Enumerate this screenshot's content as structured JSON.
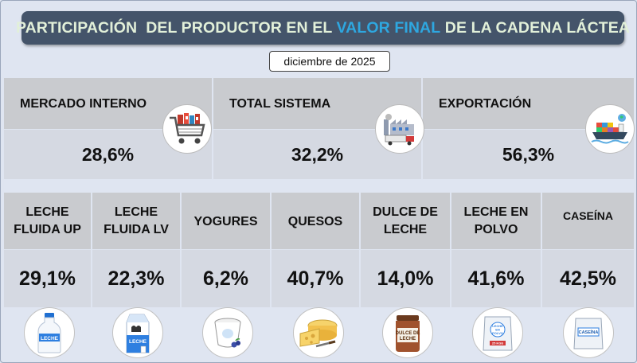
{
  "title": {
    "prefix": "PARTICIPACIÓN  DEL PRODUCTOR EN EL ",
    "highlight": "VALOR FINAL",
    "suffix": " DE LA CADENA LÁCTEA"
  },
  "date": "diciembre de 2025",
  "colors": {
    "title_bg": "#44546a",
    "title_text": "#e2f0d9",
    "title_highlight": "#2ea7e0",
    "header_bg": "#c9cbcf",
    "value_bg": "#d5d9e2",
    "page_bg": "#dfe5f1"
  },
  "icons": {
    "mercado": "shopping-cart-icon",
    "total": "factory-truck-icon",
    "export": "cargo-ship-icon",
    "leche_up": "milk-bottle-icon",
    "leche_lv": "milk-carton-icon",
    "yogures": "yogurt-cup-icon",
    "quesos": "cheese-icon",
    "dulce": "dulce-de-leche-jar-icon",
    "polvo": "powder-milk-bag-icon",
    "caseina": "caseina-bag-icon"
  },
  "icon_labels": {
    "leche_up": "LECHE",
    "leche_lv": "LECHE",
    "dulce_line1": "DULCE DE",
    "dulce_line2": "LECHE",
    "polvo_line1": "LECHE",
    "polvo_line2": "EN",
    "polvo_line3": "POLVO",
    "polvo_weight": "25 KGS",
    "caseina": "CASEÍNA"
  },
  "chart_data": [
    {
      "type": "table",
      "title": "PARTICIPACIÓN DEL PRODUCTOR EN EL VALOR FINAL DE LA CADENA LÁCTEA",
      "subtitle": "diciembre de 2025",
      "categories": [
        "MERCADO INTERNO",
        "TOTAL SISTEMA",
        "EXPORTACIÓN"
      ],
      "values": [
        28.6,
        32.2,
        56.3
      ],
      "labels": [
        "28,6%",
        "32,2%",
        "56,3%"
      ],
      "unit": "%"
    },
    {
      "type": "table",
      "categories": [
        "LECHE FLUIDA UP",
        "LECHE FLUIDA LV",
        "YOGURES",
        "QUESOS",
        "DULCE DE LECHE",
        "LECHE EN POLVO",
        "CASEÍNA"
      ],
      "values": [
        29.1,
        22.3,
        6.2,
        40.7,
        14.0,
        41.6,
        42.5
      ],
      "labels": [
        "29,1%",
        "22,3%",
        "6,2%",
        "40,7%",
        "14,0%",
        "41,6%",
        "42,5%"
      ],
      "unit": "%"
    }
  ]
}
